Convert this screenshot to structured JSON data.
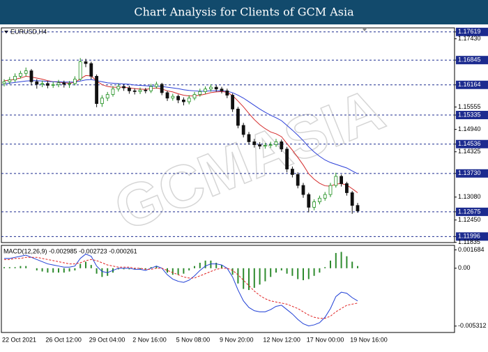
{
  "chart_data": [
    {
      "type": "candlestick",
      "title": "Chart Analysis for Clients of GCM Asia",
      "symbol": "EURUSD,H4",
      "watermark": "GCMASIA",
      "categories": [
        "22 Oct 2021",
        null,
        null,
        null,
        null,
        null,
        null,
        null,
        "26 Oct 12:00",
        null,
        null,
        null,
        null,
        null,
        null,
        null,
        "29 Oct 04:00",
        null,
        null,
        null,
        null,
        null,
        null,
        null,
        "2 Nov 16:00",
        null,
        null,
        null,
        null,
        null,
        null,
        null,
        "5 Nov 08:00",
        null,
        null,
        null,
        null,
        null,
        null,
        null,
        "9 Nov 20:00",
        null,
        null,
        null,
        null,
        null,
        null,
        null,
        "12 Nov 12:00",
        null,
        null,
        null,
        null,
        null,
        null,
        null,
        "17 Nov 00:00",
        null,
        null,
        null,
        null,
        null,
        null,
        null,
        "19 Nov 16:00",
        null
      ],
      "open": [
        1.162,
        1.1625,
        1.163,
        1.164,
        1.1648,
        1.1655,
        1.1625,
        1.1618,
        1.162,
        1.1615,
        1.1617,
        1.1622,
        1.1618,
        1.162,
        1.1632,
        1.168,
        1.1675,
        1.164,
        1.1565,
        1.158,
        1.159,
        1.1605,
        1.1612,
        1.1608,
        1.16,
        1.1598,
        1.1602,
        1.16,
        1.1612,
        1.1618,
        1.1595,
        1.158,
        1.1585,
        1.1575,
        1.157,
        1.158,
        1.159,
        1.1598,
        1.1605,
        1.161,
        1.1605,
        1.16,
        1.1588,
        1.155,
        1.1505,
        1.148,
        1.146,
        1.1452,
        1.1448,
        1.145,
        1.1452,
        1.146,
        1.144,
        1.1385,
        1.137,
        1.134,
        1.1315,
        1.128,
        1.1295,
        1.1305,
        1.1315,
        1.134,
        1.1365,
        1.1345,
        1.132,
        1.1285
      ],
      "high": [
        1.1632,
        1.1638,
        1.1648,
        1.1655,
        1.1664,
        1.166,
        1.1632,
        1.1628,
        1.1627,
        1.1625,
        1.163,
        1.1628,
        1.1627,
        1.164,
        1.169,
        1.1688,
        1.168,
        1.1645,
        1.1588,
        1.1597,
        1.1613,
        1.162,
        1.1618,
        1.1614,
        1.1607,
        1.1609,
        1.1608,
        1.1619,
        1.1625,
        1.1622,
        1.16,
        1.1592,
        1.159,
        1.1582,
        1.1588,
        1.1597,
        1.1606,
        1.1612,
        1.1618,
        1.1616,
        1.1611,
        1.1606,
        1.1593,
        1.1556,
        1.1512,
        1.1487,
        1.1468,
        1.1459,
        1.1457,
        1.146,
        1.1468,
        1.1466,
        1.1446,
        1.1392,
        1.1376,
        1.1347,
        1.132,
        1.1302,
        1.1312,
        1.1322,
        1.1347,
        1.1375,
        1.137,
        1.135,
        1.1325,
        1.1292
      ],
      "low": [
        1.1612,
        1.1618,
        1.1624,
        1.1634,
        1.164,
        1.1615,
        1.1606,
        1.161,
        1.1607,
        1.1608,
        1.161,
        1.1609,
        1.1608,
        1.1615,
        1.1628,
        1.1665,
        1.1632,
        1.1555,
        1.1556,
        1.1572,
        1.1584,
        1.1598,
        1.16,
        1.1592,
        1.159,
        1.1591,
        1.1593,
        1.1594,
        1.1606,
        1.1588,
        1.1572,
        1.1573,
        1.1566,
        1.156,
        1.1563,
        1.1574,
        1.1584,
        1.1592,
        1.1598,
        1.1598,
        1.1593,
        1.158,
        1.1542,
        1.1497,
        1.1472,
        1.1452,
        1.1444,
        1.144,
        1.1441,
        1.1443,
        1.1446,
        1.1432,
        1.1376,
        1.1362,
        1.1332,
        1.1306,
        1.1266,
        1.1272,
        1.1288,
        1.1298,
        1.1308,
        1.1334,
        1.1337,
        1.1312,
        1.1262,
        1.1265
      ],
      "close": [
        1.1625,
        1.163,
        1.164,
        1.1648,
        1.1655,
        1.1625,
        1.1618,
        1.162,
        1.1615,
        1.1617,
        1.1622,
        1.1618,
        1.162,
        1.1632,
        1.168,
        1.1675,
        1.164,
        1.1565,
        1.158,
        1.159,
        1.1605,
        1.1612,
        1.1608,
        1.16,
        1.1598,
        1.1602,
        1.16,
        1.1612,
        1.1618,
        1.1595,
        1.158,
        1.1585,
        1.1575,
        1.157,
        1.158,
        1.159,
        1.1598,
        1.1605,
        1.161,
        1.1605,
        1.16,
        1.1588,
        1.155,
        1.1505,
        1.148,
        1.146,
        1.1452,
        1.1448,
        1.145,
        1.1452,
        1.146,
        1.144,
        1.1385,
        1.137,
        1.134,
        1.1315,
        1.128,
        1.1295,
        1.1305,
        1.1315,
        1.134,
        1.1365,
        1.1345,
        1.132,
        1.1285,
        1.127
      ],
      "up_color": "#1f8f1f",
      "down_color": "#111111",
      "series": [
        {
          "color": "#d42a2a",
          "values": [
            1.1628,
            1.1629,
            1.1632,
            1.1635,
            1.164,
            1.1638,
            1.1635,
            1.1632,
            1.1628,
            1.1625,
            1.1624,
            1.1622,
            1.1621,
            1.1623,
            1.1633,
            1.1642,
            1.1641,
            1.1627,
            1.1617,
            1.1612,
            1.161,
            1.161,
            1.161,
            1.1608,
            1.1606,
            1.1605,
            1.1604,
            1.1606,
            1.1608,
            1.1605,
            1.16,
            1.1597,
            1.1592,
            1.1588,
            1.1586,
            1.1586,
            1.1588,
            1.1591,
            1.1595,
            1.1597,
            1.1598,
            1.1596,
            1.1587,
            1.1572,
            1.1556,
            1.1538,
            1.1521,
            1.1507,
            1.1496,
            1.1487,
            1.1482,
            1.1474,
            1.1455,
            1.1437,
            1.1417,
            1.1396,
            1.1372,
            1.1357,
            1.1346,
            1.1339,
            1.1338,
            1.1344,
            1.1345,
            1.1341,
            1.1331,
            1.132
          ]
        },
        {
          "color": "#2b3fd8",
          "values": [
            1.162,
            1.1621,
            1.1623,
            1.1625,
            1.1627,
            1.1628,
            1.1628,
            1.1627,
            1.1626,
            1.1625,
            1.1625,
            1.1624,
            1.1624,
            1.1624,
            1.1627,
            1.163,
            1.1631,
            1.1628,
            1.1625,
            1.1622,
            1.1621,
            1.162,
            1.1619,
            1.1618,
            1.1616,
            1.1615,
            1.1614,
            1.1613,
            1.1613,
            1.1612,
            1.161,
            1.1608,
            1.1606,
            1.1603,
            1.1601,
            1.16,
            1.1599,
            1.1599,
            1.16,
            1.16,
            1.16,
            1.1599,
            1.1595,
            1.1588,
            1.158,
            1.157,
            1.156,
            1.155,
            1.1541,
            1.1533,
            1.1526,
            1.1518,
            1.1505,
            1.1492,
            1.1478,
            1.1463,
            1.1446,
            1.1432,
            1.142,
            1.141,
            1.1403,
            1.1398,
            1.1393,
            1.1388,
            1.138,
            1.1372
          ]
        }
      ],
      "ylim": [
        1.1183,
        1.1773
      ],
      "yticks": [
        1.17619,
        {
          "value": 1.1743,
          "label": "1.17430"
        },
        1.16845,
        1.16164,
        1.15555,
        1.15335,
        {
          "value": 1.1494,
          "label": "1.14940"
        },
        1.14536,
        1.14325,
        {
          "value": 1.1373,
          "label": "1.13730"
        },
        {
          "value": 1.1308,
          "label": "1.13080"
        },
        1.12675,
        {
          "value": 1.1245,
          "label": "1.12450"
        },
        1.11996,
        1.11835
      ],
      "levels": [
        1.17619,
        1.16845,
        1.16164,
        1.15335,
        1.14536,
        1.1373,
        1.12675,
        1.11996
      ],
      "level_color": "#1c2b8f"
    },
    {
      "type": "macd",
      "label": "MACD(12,26,9) -0.002985 -0.002723 -0.000261",
      "series": [
        {
          "style": "histogram",
          "color": "#2e8b2e",
          "values": [
            0.0001,
            0.0001,
            0.0001,
            0.0002,
            0.0002,
            0,
            -0.0002,
            -0.0003,
            -0.0004,
            -0.0004,
            -0.0004,
            -0.0004,
            -0.0003,
            -0.0002,
            0.0004,
            0.0006,
            0.0003,
            -0.0005,
            -0.0008,
            -0.0007,
            -0.0004,
            -0.0001,
            -0.0001,
            -0.0001,
            -0.0001,
            -0.0001,
            -0.0001,
            0.0001,
            0.0002,
            0,
            -0.0004,
            -0.0006,
            -0.0006,
            -0.0005,
            -0.0002,
            0.0002,
            0.0005,
            0.0007,
            0.0007,
            0.0005,
            0.0003,
            0,
            -0.0006,
            -0.0014,
            -0.0019,
            -0.002,
            -0.0018,
            -0.0015,
            -0.0012,
            -0.0008,
            -0.0004,
            -0.0002,
            -0.0005,
            -0.0007,
            -0.001,
            -0.0011,
            -0.001,
            -0.0007,
            -0.0004,
            0.0001,
            0.0007,
            0.0014,
            0.0015,
            0.0011,
            0.0006,
            0.0002
          ]
        },
        {
          "style": "line",
          "color": "#1f3fd6",
          "values": [
            0.0009,
            0.0009,
            0.001,
            0.0011,
            0.0012,
            0.001,
            0.0008,
            0.0006,
            0.0004,
            0.0003,
            0.0002,
            0.0001,
            0.0001,
            0.0002,
            0.0009,
            0.0013,
            0.0011,
            0.0002,
            -0.0003,
            -0.0004,
            -0.0002,
            0,
            0,
            0,
            -0.0001,
            -0.0001,
            -0.0002,
            0,
            0.0002,
            0,
            -0.0006,
            -0.001,
            -0.0012,
            -0.0013,
            -0.0011,
            -0.0007,
            -0.0002,
            0.0002,
            0.0004,
            0.0004,
            0.0003,
            0,
            -0.0008,
            -0.002,
            -0.003,
            -0.0036,
            -0.0039,
            -0.004,
            -0.004,
            -0.0038,
            -0.0035,
            -0.0034,
            -0.0038,
            -0.0042,
            -0.0047,
            -0.0051,
            -0.0053,
            -0.0052,
            -0.005,
            -0.0045,
            -0.0037,
            -0.0026,
            -0.0022,
            -0.0023,
            -0.0027,
            -0.003
          ]
        },
        {
          "style": "dashed",
          "color": "#e02020",
          "values": [
            0.0008,
            0.0008,
            0.0009,
            0.0009,
            0.001,
            0.001,
            0.001,
            0.0009,
            0.0008,
            0.0007,
            0.0006,
            0.0005,
            0.0004,
            0.0004,
            0.0005,
            0.0007,
            0.0008,
            0.0007,
            0.0005,
            0.0003,
            0.0002,
            0.0001,
            0.0001,
            0.0001,
            0,
            0,
            -0.0001,
            -0.0001,
            0,
            0,
            -0.0002,
            -0.0004,
            -0.0006,
            -0.0008,
            -0.0009,
            -0.0009,
            -0.0007,
            -0.0005,
            -0.0003,
            -0.0001,
            0,
            0,
            -0.0002,
            -0.0006,
            -0.0011,
            -0.0016,
            -0.0021,
            -0.0025,
            -0.0028,
            -0.003,
            -0.0031,
            -0.0032,
            -0.0033,
            -0.0035,
            -0.0037,
            -0.004,
            -0.0043,
            -0.0045,
            -0.0046,
            -0.0046,
            -0.0044,
            -0.004,
            -0.0037,
            -0.0034,
            -0.0033,
            -0.0032
          ]
        }
      ],
      "ylim": [
        -0.0059,
        0.0021
      ],
      "yticks": [
        0.001684,
        {
          "value": 0,
          "label": "0.00"
        },
        -0.005312
      ]
    }
  ]
}
